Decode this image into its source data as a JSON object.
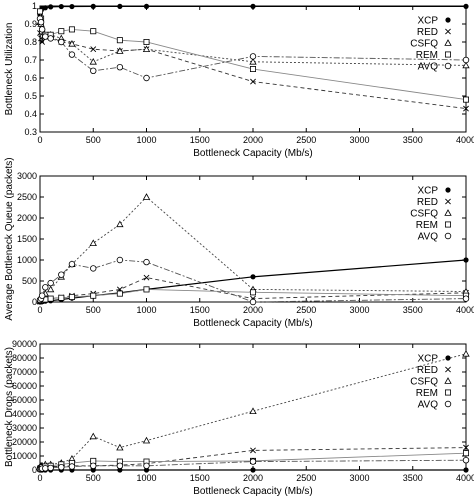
{
  "chart_data": [
    {
      "type": "line",
      "xlabel": "Bottleneck Capacity (Mb/s)",
      "ylabel": "Bottleneck Utilization",
      "xlim": [
        0,
        4000
      ],
      "ylim": [
        0.3,
        1.0
      ],
      "xticks": [
        0,
        500,
        1000,
        1500,
        2000,
        2500,
        3000,
        3500,
        4000
      ],
      "xtick_labels": [
        "0",
        "500",
        "1000",
        "1500",
        "2000",
        "2500",
        "3000",
        "3500",
        "4000"
      ],
      "yticks": [
        0.3,
        0.4,
        0.5,
        0.6,
        0.7,
        0.8,
        0.9,
        1.0
      ],
      "ytick_labels": [
        "0.3",
        "0.4",
        "0.5",
        "0.6",
        "0.7",
        "0.8",
        "0.9",
        "1"
      ],
      "legend_position": "top-right",
      "series": [
        {
          "name": "XCP",
          "x": [
            0,
            10,
            20,
            50,
            100,
            200,
            300,
            500,
            750,
            1000,
            2000,
            4000
          ],
          "y": [
            0.95,
            0.975,
            0.985,
            0.99,
            0.995,
            0.997,
            0.997,
            0.998,
            0.998,
            0.998,
            0.998,
            0.998
          ]
        },
        {
          "name": "RED",
          "x": [
            0,
            10,
            20,
            50,
            100,
            200,
            300,
            500,
            750,
            1000,
            2000,
            4000
          ],
          "y": [
            0.85,
            0.82,
            0.8,
            0.84,
            0.83,
            0.8,
            0.79,
            0.76,
            0.75,
            0.76,
            0.58,
            0.43
          ]
        },
        {
          "name": "CSFQ",
          "x": [
            0,
            10,
            20,
            50,
            100,
            200,
            300,
            500,
            750,
            1000,
            2000,
            4000
          ],
          "y": [
            0.91,
            0.9,
            0.86,
            0.83,
            0.84,
            0.82,
            0.79,
            0.69,
            0.75,
            0.76,
            0.69,
            0.67
          ]
        },
        {
          "name": "REM",
          "x": [
            0,
            10,
            20,
            50,
            100,
            200,
            300,
            500,
            750,
            1000,
            2000,
            4000
          ],
          "y": [
            0.97,
            0.93,
            0.86,
            0.84,
            0.84,
            0.86,
            0.87,
            0.86,
            0.81,
            0.8,
            0.65,
            0.48
          ]
        },
        {
          "name": "AVQ",
          "x": [
            0,
            10,
            20,
            50,
            100,
            200,
            300,
            500,
            750,
            1000,
            2000,
            4000
          ],
          "y": [
            0.93,
            0.91,
            0.87,
            0.83,
            0.82,
            0.8,
            0.73,
            0.64,
            0.66,
            0.6,
            0.72,
            0.7
          ]
        }
      ]
    },
    {
      "type": "line",
      "xlabel": "Bottleneck Capacity (Mb/s)",
      "ylabel": "Average Bottleneck Queue (packets)",
      "xlim": [
        0,
        4000
      ],
      "ylim": [
        0,
        3000
      ],
      "xticks": [
        0,
        500,
        1000,
        1500,
        2000,
        2500,
        3000,
        3500,
        4000
      ],
      "xtick_labels": [
        "0",
        "500",
        "1000",
        "1500",
        "2000",
        "2500",
        "3000",
        "3500",
        "4000"
      ],
      "yticks": [
        0,
        500,
        1000,
        1500,
        2000,
        2500,
        3000
      ],
      "ytick_labels": [
        "0",
        "500",
        "1000",
        "1500",
        "2000",
        "2500",
        "3000"
      ],
      "legend_position": "top-right",
      "series": [
        {
          "name": "XCP",
          "x": [
            0,
            10,
            20,
            50,
            100,
            200,
            300,
            500,
            750,
            1000,
            2000,
            4000
          ],
          "y": [
            0,
            5,
            10,
            20,
            30,
            60,
            90,
            150,
            220,
            300,
            600,
            1000
          ]
        },
        {
          "name": "RED",
          "x": [
            0,
            10,
            20,
            50,
            100,
            200,
            300,
            500,
            750,
            1000,
            2000,
            4000
          ],
          "y": [
            10,
            20,
            30,
            50,
            80,
            110,
            150,
            200,
            300,
            580,
            80,
            220
          ]
        },
        {
          "name": "CSFQ",
          "x": [
            0,
            10,
            20,
            50,
            100,
            200,
            300,
            500,
            750,
            1000,
            2000,
            4000
          ],
          "y": [
            30,
            60,
            100,
            200,
            300,
            600,
            900,
            1400,
            1850,
            2500,
            300,
            250
          ]
        },
        {
          "name": "REM",
          "x": [
            0,
            10,
            20,
            50,
            100,
            200,
            300,
            500,
            750,
            1000,
            2000,
            4000
          ],
          "y": [
            20,
            30,
            40,
            60,
            80,
            100,
            120,
            150,
            200,
            300,
            230,
            150
          ]
        },
        {
          "name": "AVQ",
          "x": [
            0,
            10,
            20,
            50,
            100,
            200,
            300,
            500,
            750,
            1000,
            2000,
            4000
          ],
          "y": [
            50,
            80,
            150,
            350,
            450,
            650,
            900,
            800,
            1000,
            950,
            0,
            80
          ]
        }
      ]
    },
    {
      "type": "line",
      "xlabel": "Bottleneck Capacity (Mb/s)",
      "ylabel": "Bottleneck Drops (packets)",
      "xlim": [
        0,
        4000
      ],
      "ylim": [
        0,
        90000
      ],
      "xticks": [
        0,
        500,
        1000,
        1500,
        2000,
        2500,
        3000,
        3500,
        4000
      ],
      "xtick_labels": [
        "0",
        "500",
        "1000",
        "1500",
        "2000",
        "2500",
        "3000",
        "3500",
        "4000"
      ],
      "yticks": [
        0,
        10000,
        20000,
        30000,
        40000,
        50000,
        60000,
        70000,
        80000,
        90000
      ],
      "ytick_labels": [
        "0",
        "10000",
        "20000",
        "30000",
        "40000",
        "50000",
        "60000",
        "70000",
        "80000",
        "90000"
      ],
      "legend_position": "top-right",
      "series": [
        {
          "name": "XCP",
          "x": [
            0,
            10,
            20,
            50,
            100,
            200,
            300,
            500,
            750,
            1000,
            2000,
            4000
          ],
          "y": [
            0,
            0,
            0,
            0,
            0,
            0,
            0,
            0,
            0,
            0,
            0,
            0
          ]
        },
        {
          "name": "RED",
          "x": [
            0,
            10,
            20,
            50,
            100,
            200,
            300,
            500,
            750,
            1000,
            2000,
            4000
          ],
          "y": [
            1000,
            1500,
            2000,
            2000,
            2500,
            2500,
            3000,
            3000,
            3500,
            4500,
            14000,
            16000
          ]
        },
        {
          "name": "CSFQ",
          "x": [
            0,
            10,
            20,
            50,
            100,
            200,
            300,
            500,
            750,
            1000,
            2000,
            4000
          ],
          "y": [
            2000,
            3000,
            3000,
            4000,
            4000,
            5000,
            8000,
            24000,
            16000,
            21000,
            42000,
            83000
          ]
        },
        {
          "name": "REM",
          "x": [
            0,
            10,
            20,
            50,
            100,
            200,
            300,
            500,
            750,
            1000,
            2000,
            4000
          ],
          "y": [
            1000,
            1500,
            2000,
            2500,
            3000,
            4000,
            5000,
            6500,
            6000,
            6000,
            6500,
            12000
          ]
        },
        {
          "name": "AVQ",
          "x": [
            0,
            10,
            20,
            50,
            100,
            200,
            300,
            500,
            750,
            1000,
            2000,
            4000
          ],
          "y": [
            500,
            800,
            1000,
            1200,
            1500,
            2000,
            2500,
            3000,
            3000,
            3000,
            6000,
            7000
          ]
        }
      ]
    }
  ]
}
